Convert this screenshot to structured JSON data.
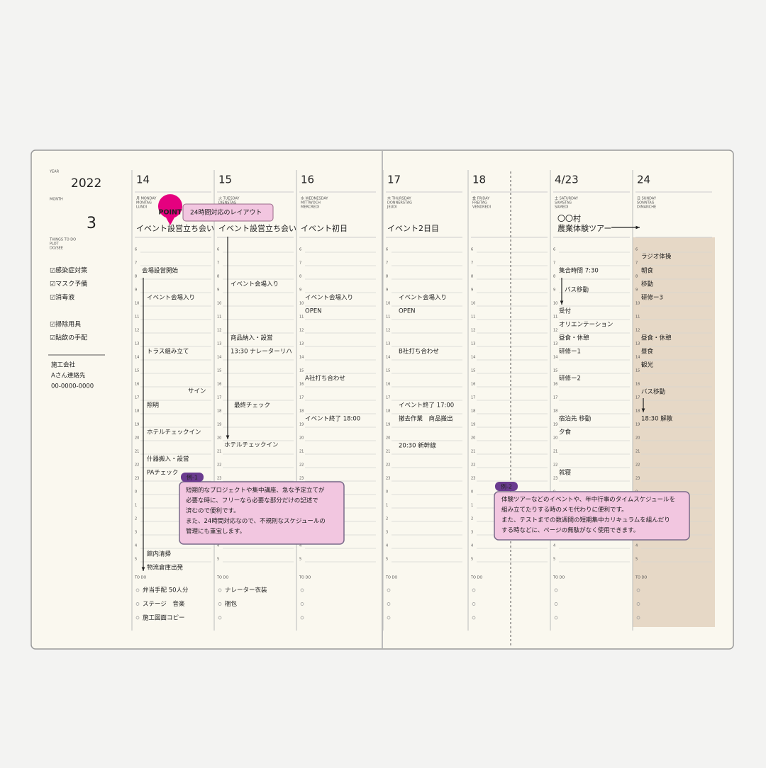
{
  "sidebar": {
    "year_label": "YEAR",
    "year": "2022",
    "month_label": "MONTH",
    "month": "3",
    "things_label": [
      "THINGS TO DO",
      "PLOT",
      "DO/SEE"
    ],
    "checklist": [
      "☑感染症対策",
      "☑マスク予備",
      "☑消毒液",
      "☑掃除用具",
      "☑貼飲の手配"
    ],
    "memo": [
      "施工会社",
      "Aさん連絡先",
      "00-0000-0000"
    ]
  },
  "hours": [
    "6",
    "7",
    "8",
    "9",
    "10",
    "11",
    "12",
    "13",
    "14",
    "15",
    "16",
    "17",
    "18",
    "19",
    "20",
    "21",
    "22",
    "23",
    "0",
    "1",
    "2",
    "3",
    "4",
    "5"
  ],
  "todo_label": "TO DO",
  "days": [
    {
      "date": "14",
      "weekday": [
        "月 MONDAY",
        "MONTAG",
        "LUNDI"
      ],
      "header_task": [
        "イベント設営立ち会い"
      ],
      "entries": [
        "会場設営開始",
        "イベント会場入り",
        "トラス組み立て",
        "サイン",
        "照明",
        "ホテルチェックイン",
        "什器搬入・設営",
        "PAチェック",
        "館内清掃",
        "物流倉庫出発"
      ],
      "todo": [
        "弁当手配 50人分",
        "ステージ　音楽",
        "施工図面コピー"
      ]
    },
    {
      "date": "15",
      "weekday": [
        "火 TUESDAY",
        "DIENSTAG",
        "MARDI"
      ],
      "header_task": [
        "イベント設営立ち会い"
      ],
      "entries": [
        "イベント会場入り",
        "商品納入・設営",
        "13:30 ナレーターリハ",
        "最終チェック",
        "ホテルチェックイン"
      ],
      "todo": [
        "ナレーター衣装",
        "梱包"
      ]
    },
    {
      "date": "16",
      "weekday": [
        "水 WEDNESDAY",
        "MITTWOCH",
        "MERCREDI"
      ],
      "header_task": [
        "イベント初日"
      ],
      "entries": [
        "イベント会場入り",
        "OPEN",
        "A社打ち合わせ",
        "イベント終了 18:00"
      ],
      "todo": []
    },
    {
      "date": "17",
      "weekday": [
        "木 THURSDAY",
        "DONNERSTAG",
        "JEUDI"
      ],
      "header_task": [
        "イベント2日目"
      ],
      "entries": [
        "イベント会場入り",
        "OPEN",
        "B社打ち合わせ",
        "イベント終了 17:00",
        "撤去作業　商品搬出",
        "20:30 新幹線"
      ],
      "todo": []
    },
    {
      "date": "18",
      "weekday": [
        "金 FRIDAY",
        "FREITAG",
        "VENDREDI"
      ],
      "header_task": [],
      "entries": [],
      "todo": []
    },
    {
      "date": "4/23",
      "weekday": [
        "土 SATURDAY",
        "SAMSTAG",
        "SAMEDI"
      ],
      "header_task": [
        "〇〇村",
        "農業体験ツアー"
      ],
      "entries": [
        "集合時間 7:30",
        "バス移動",
        "受付",
        "オリエンテーション",
        "昼食・休憩",
        "研修ー1",
        "研修ー2",
        "宿泊先 移動",
        "夕食",
        "就寝"
      ],
      "todo": []
    },
    {
      "date": "24",
      "weekday": [
        "日 SUNDAY",
        "SONNTAG",
        "DIMANCHE"
      ],
      "header_task": [],
      "entries": [
        "ラジオ体操",
        "朝食",
        "移動",
        "研修ー3",
        "昼食・休憩",
        "昼食",
        "観光",
        "バス移動",
        "18:30 解散"
      ],
      "todo": []
    }
  ],
  "callouts": {
    "point": {
      "badge": "POINT",
      "text": "24時間対応のレイアウト"
    },
    "example1": {
      "tag": "例-1",
      "lines": [
        "短期的なプロジェクトや集中講座、急な予定立てが",
        "必要な時に、フリーなら必要な部分だけの記述で",
        "済むので便利です。",
        "また、24時間対応なので、不規則なスケジュールの",
        "管理にも重宝します。"
      ]
    },
    "example2": {
      "tag": "例-2",
      "lines": [
        "体験ツアーなどのイベントや、年中行事のタイムスケジュールを",
        "組み立てたりする時のメモ代わりに便利です。",
        "また、テストまでの数週間の短期集中カリキュラムを組んだり",
        "する時などに、ページの無駄がなく使用できます。"
      ]
    }
  }
}
